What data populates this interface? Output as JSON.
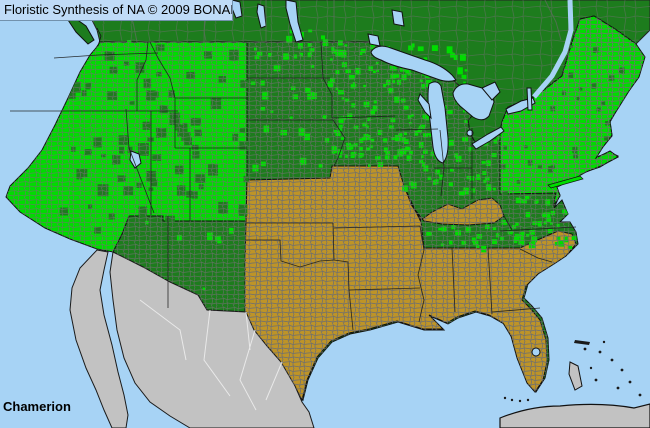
{
  "title_bar": {
    "text": "Floristic Synthesis of NA © 2009 BONAP"
  },
  "taxon_label": "Chamerion",
  "map": {
    "kind": "county-level plant distribution map of North America",
    "colors": {
      "water": "#A7D3F5",
      "county_present_green": "#00DC00",
      "state_present_dark_green": "#1D7C1D",
      "state_absent_gold": "#BE9427",
      "outside_coverage_gray": "#C2C2C2",
      "county_line": "#6F6F6F",
      "border_line": "#1A1A1A",
      "mexico_state_line": "#EDEDED",
      "title_bg": "#BFDBF7",
      "title_border": "#7291AC",
      "label_color": "#000000"
    },
    "distribution": {
      "bright_green_areas": [
        "Washington",
        "Oregon",
        "California",
        "Nevada",
        "Idaho",
        "Montana",
        "Wyoming",
        "Utah",
        "Colorado",
        "Minnesota",
        "Wisconsin",
        "Michigan",
        "New York",
        "Pennsylvania",
        "New Jersey",
        "Vermont",
        "New Hampshire",
        "Massachusetts",
        "Connecticut",
        "Rhode Island",
        "Maine"
      ],
      "dark_green_areas": [
        "Canada (all visible provinces)",
        "Arizona",
        "New Mexico",
        "North Dakota",
        "South Dakota",
        "Nebraska",
        "Iowa",
        "Illinois",
        "Indiana",
        "Ohio",
        "Tennessee",
        "West Virginia",
        "Virginia",
        "Maryland",
        "Delaware",
        "North Carolina"
      ],
      "gold_areas": [
        "Kansas",
        "Oklahoma",
        "Texas",
        "Missouri",
        "Arkansas",
        "Louisiana",
        "Mississippi",
        "Alabama",
        "Georgia",
        "Florida",
        "South Carolina",
        "Kentucky"
      ],
      "gray_areas": [
        "Mexico",
        "Cuba",
        "Bahamas"
      ]
    }
  }
}
